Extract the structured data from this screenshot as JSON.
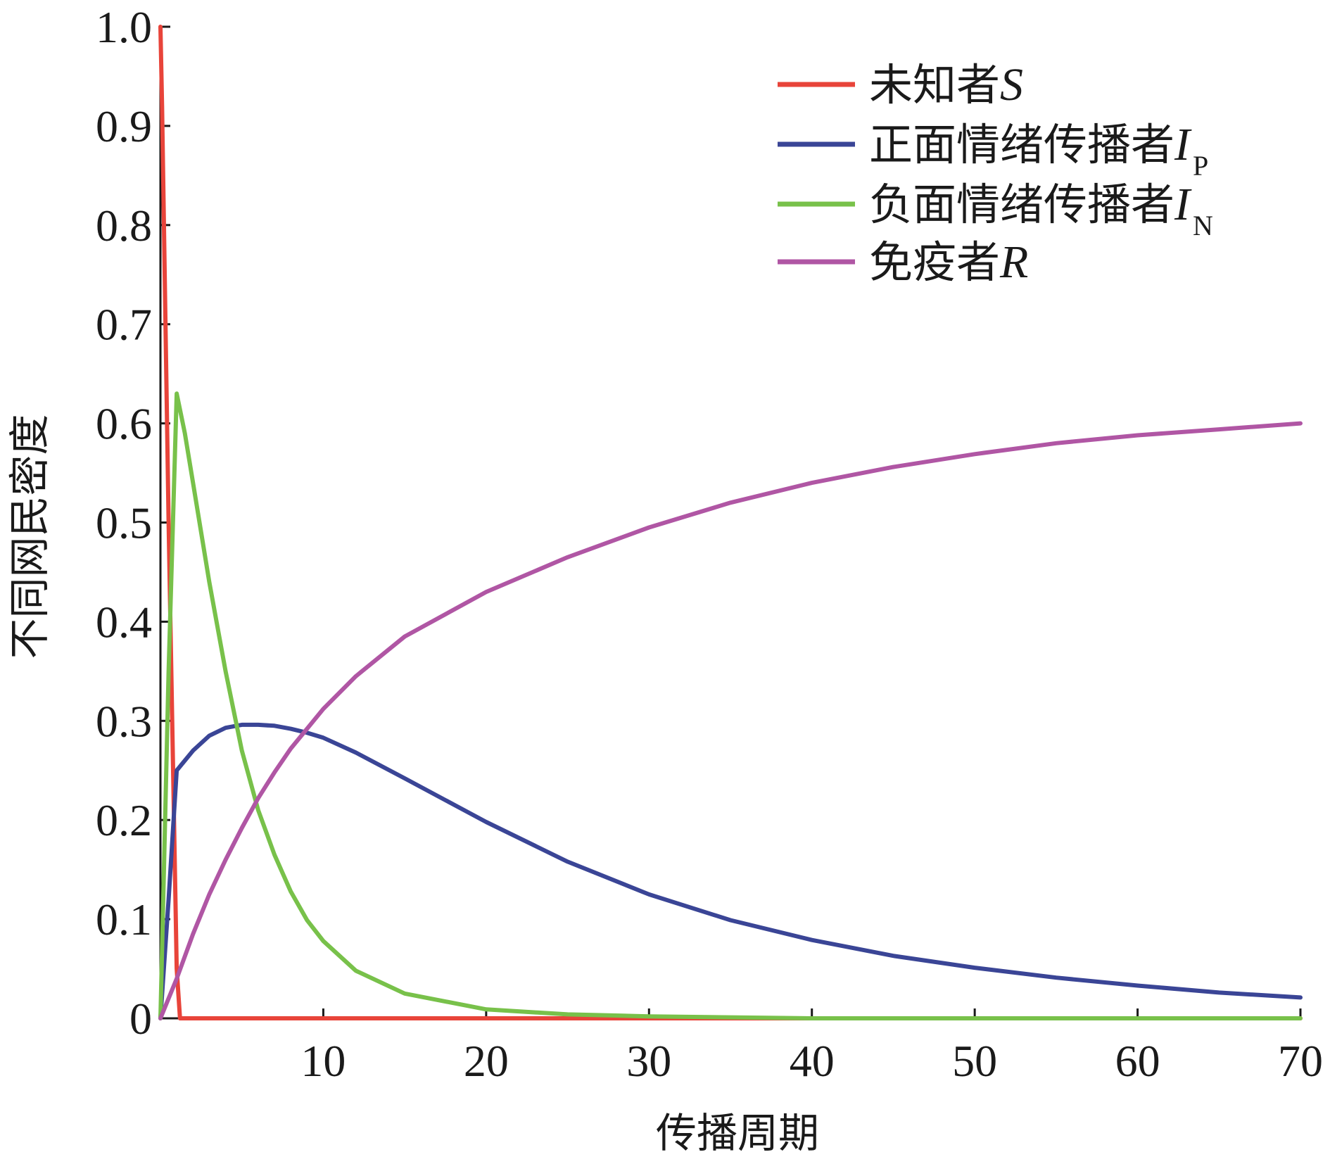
{
  "chart_data": {
    "type": "line",
    "xlabel": "传播周期",
    "ylabel": "不同网民密度",
    "xlim": [
      0,
      70
    ],
    "ylim": [
      0,
      1.0
    ],
    "xticks": [
      10,
      20,
      30,
      40,
      50,
      60,
      70
    ],
    "xtick_labels": [
      "10",
      "20",
      "30",
      "40",
      "50",
      "60",
      "70"
    ],
    "yticks": [
      0,
      0.1,
      0.2,
      0.3,
      0.4,
      0.5,
      0.6,
      0.7,
      0.8,
      0.9,
      1.0
    ],
    "ytick_labels": [
      "0",
      "0.1",
      "0.2",
      "0.3",
      "0.4",
      "0.5",
      "0.6",
      "0.7",
      "0.8",
      "0.9",
      "1.0"
    ],
    "grid": false,
    "legend_position": "top-right",
    "series": [
      {
        "name": "未知者S",
        "legend_text": "未知者",
        "legend_symbol": "S",
        "legend_subscript": "",
        "color": "#e8443a",
        "x": [
          0,
          0.1,
          0.5,
          1.0,
          1.2,
          5,
          10,
          20,
          30,
          40,
          50,
          60,
          70
        ],
        "y": [
          1.0,
          0.92,
          0.5,
          0.05,
          0.0,
          0.0,
          0.0,
          0.0,
          0.0,
          0.0,
          0.0,
          0.0,
          0.0
        ]
      },
      {
        "name": "正面情绪传播者IP",
        "legend_text": "正面情绪传播者",
        "legend_symbol": "I",
        "legend_subscript": "P",
        "color": "#3a4596",
        "x": [
          0,
          0.5,
          1.0,
          2,
          3,
          4,
          5,
          6,
          7,
          8,
          9,
          10,
          12,
          15,
          20,
          25,
          30,
          35,
          40,
          45,
          50,
          55,
          60,
          65,
          70
        ],
        "y": [
          0,
          0.12,
          0.25,
          0.27,
          0.285,
          0.293,
          0.296,
          0.296,
          0.295,
          0.292,
          0.288,
          0.283,
          0.268,
          0.242,
          0.198,
          0.158,
          0.125,
          0.099,
          0.079,
          0.063,
          0.051,
          0.041,
          0.033,
          0.026,
          0.021
        ]
      },
      {
        "name": "负面情绪传播者IN",
        "legend_text": "负面情绪传播者",
        "legend_symbol": "I",
        "legend_subscript": "N",
        "color": "#78c14a",
        "x": [
          0,
          0.5,
          1.0,
          1.5,
          2,
          3,
          4,
          5,
          6,
          7,
          8,
          9,
          10,
          12,
          15,
          20,
          25,
          30,
          40,
          50,
          60,
          70
        ],
        "y": [
          0,
          0.35,
          0.63,
          0.59,
          0.54,
          0.44,
          0.35,
          0.27,
          0.21,
          0.165,
          0.128,
          0.099,
          0.078,
          0.048,
          0.025,
          0.009,
          0.004,
          0.002,
          0.0,
          0.0,
          0.0,
          0.0
        ]
      },
      {
        "name": "免疫者R",
        "legend_text": "免疫者",
        "legend_symbol": "R",
        "legend_subscript": "",
        "color": "#b056a4",
        "x": [
          0,
          1,
          2,
          3,
          4,
          5,
          6,
          7,
          8,
          10,
          12,
          15,
          20,
          25,
          30,
          35,
          40,
          45,
          50,
          55,
          60,
          65,
          70
        ],
        "y": [
          0,
          0.04,
          0.085,
          0.125,
          0.16,
          0.192,
          0.222,
          0.248,
          0.272,
          0.312,
          0.345,
          0.385,
          0.43,
          0.465,
          0.495,
          0.52,
          0.54,
          0.556,
          0.569,
          0.58,
          0.588,
          0.594,
          0.6
        ]
      }
    ]
  }
}
